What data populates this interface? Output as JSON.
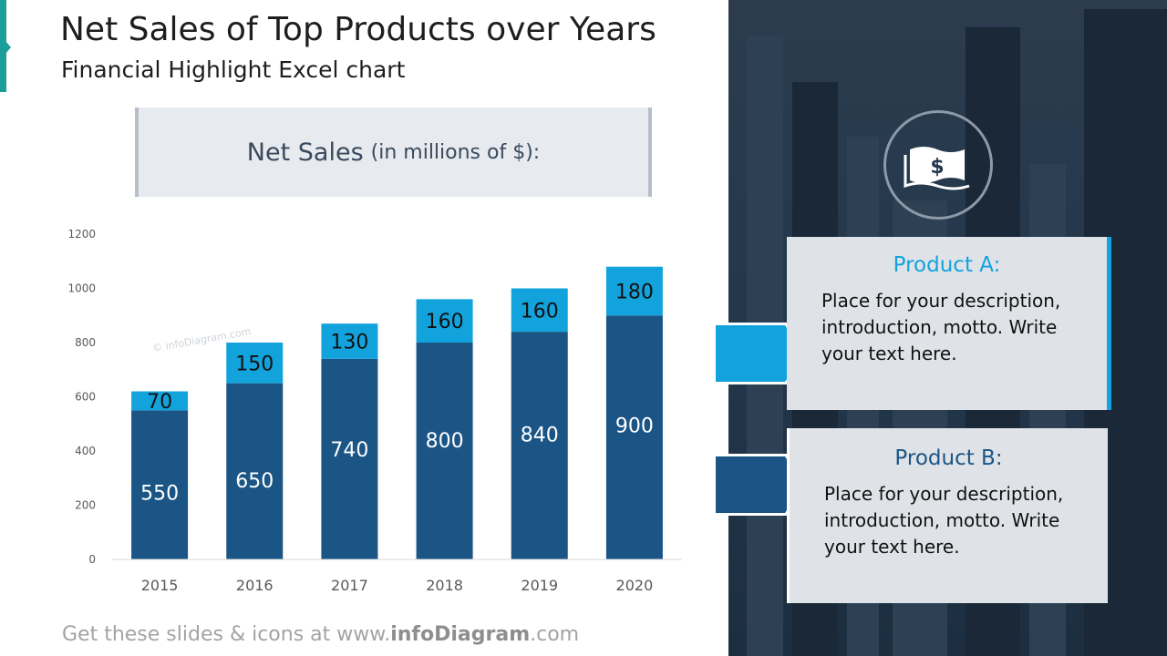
{
  "slide": {
    "title": "Net Sales of Top Products over Years",
    "subtitle": "Financial Highlight Excel chart",
    "box_label": "Net Sales",
    "box_unit": "(in millions of $):",
    "footer_prefix": "Get these slides & icons at www.",
    "footer_brand": "infoDiagram",
    "footer_suffix": ".com",
    "watermark": "© infoDiagram.com"
  },
  "side": {
    "icon_glyph": "$",
    "icon": "money-bill-icon",
    "product_a": {
      "title": "Product A:",
      "description": "Place for your description, introduction, motto. Write your text here."
    },
    "product_b": {
      "title": "Product B:",
      "description": "Place for your description, introduction, motto. Write your text here."
    }
  },
  "chart_data": {
    "type": "bar",
    "stacked": true,
    "categories": [
      "2015",
      "2016",
      "2017",
      "2018",
      "2019",
      "2020"
    ],
    "series": [
      {
        "values": [
          550,
          650,
          740,
          800,
          840,
          900
        ],
        "color": "#1b5585"
      },
      {
        "values": [
          70,
          150,
          130,
          160,
          160,
          180
        ],
        "color": "#12a3dd"
      }
    ],
    "ylim": [
      0,
      1200
    ],
    "yticks": [
      0,
      200,
      400,
      600,
      800,
      1000,
      1200
    ],
    "grid": false,
    "legend": "none"
  },
  "colors": {
    "accent_teal": "#1a9e9a",
    "product_a": "#12a3dd",
    "product_b": "#1b5585",
    "panel_bg": "#2a3b4d"
  }
}
